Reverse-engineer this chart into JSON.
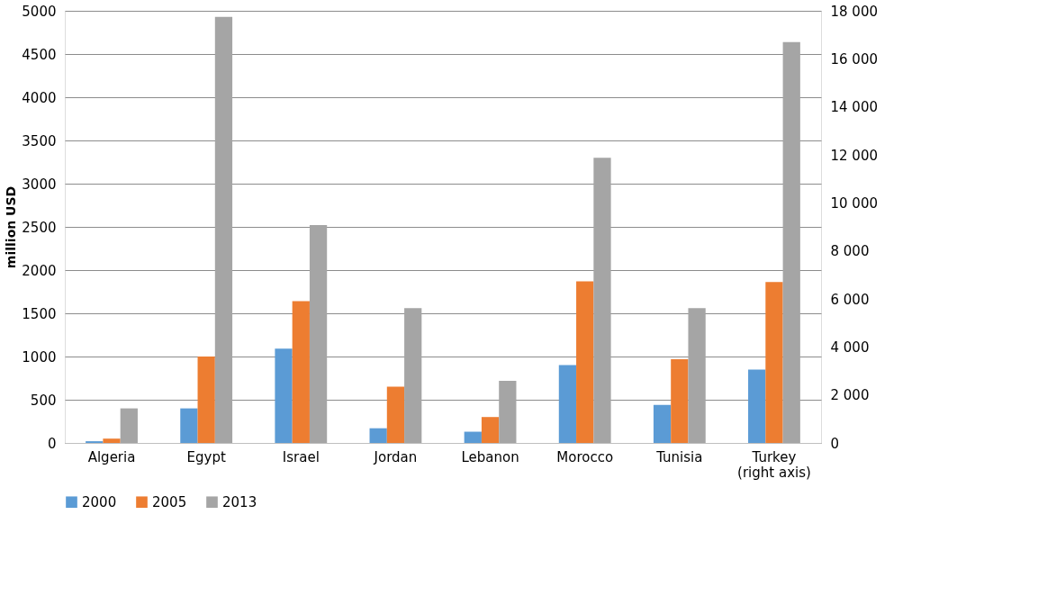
{
  "chart_data": {
    "type": "bar",
    "ylabel": "million USD",
    "categories": [
      "Algeria",
      "Egypt",
      "Israel",
      "Jordan",
      "Lebanon",
      "Morocco",
      "Tunisia",
      "Turkey\n(right axis)"
    ],
    "series": [
      {
        "name": "2000",
        "color": "#5b9bd5",
        "values": [
          20,
          400,
          1090,
          170,
          130,
          900,
          440,
          null
        ]
      },
      {
        "name": "2005",
        "color": "#ed7d31",
        "values": [
          50,
          1000,
          1640,
          650,
          300,
          1870,
          970,
          null
        ]
      },
      {
        "name": "2013",
        "color": "#a5a5a5",
        "values": [
          400,
          4930,
          2520,
          1560,
          720,
          3300,
          1560,
          null
        ]
      },
      {
        "color": "#5b9bd5",
        "axis": "y2",
        "values": [
          null,
          null,
          null,
          null,
          null,
          null,
          null,
          3060
        ]
      },
      {
        "color": "#ed7d31",
        "axis": "y2",
        "values": [
          null,
          null,
          null,
          null,
          null,
          null,
          null,
          6700
        ]
      },
      {
        "color": "#a5a5a5",
        "axis": "y2",
        "values": [
          null,
          null,
          null,
          null,
          null,
          null,
          null,
          16700
        ]
      }
    ],
    "ylim": [
      0,
      5000
    ],
    "yticks": [
      0,
      500,
      1000,
      1500,
      2000,
      2500,
      3000,
      3500,
      4000,
      4500,
      5000
    ],
    "y2lim": [
      0,
      18000
    ],
    "y2ticks": [
      0,
      {
        "value": 2000,
        "label": "2 000"
      },
      {
        "value": 4000,
        "label": "4 000"
      },
      {
        "value": 6000,
        "label": "6 000"
      },
      {
        "value": 8000,
        "label": "8 000"
      },
      {
        "value": 10000,
        "label": "10 000"
      },
      {
        "value": 12000,
        "label": "12 000"
      },
      {
        "value": 14000,
        "label": "14 000"
      },
      {
        "value": 16000,
        "label": "16 000"
      },
      {
        "value": 18000,
        "label": "18 000"
      }
    ],
    "grid": "y",
    "legend": "bottom"
  }
}
